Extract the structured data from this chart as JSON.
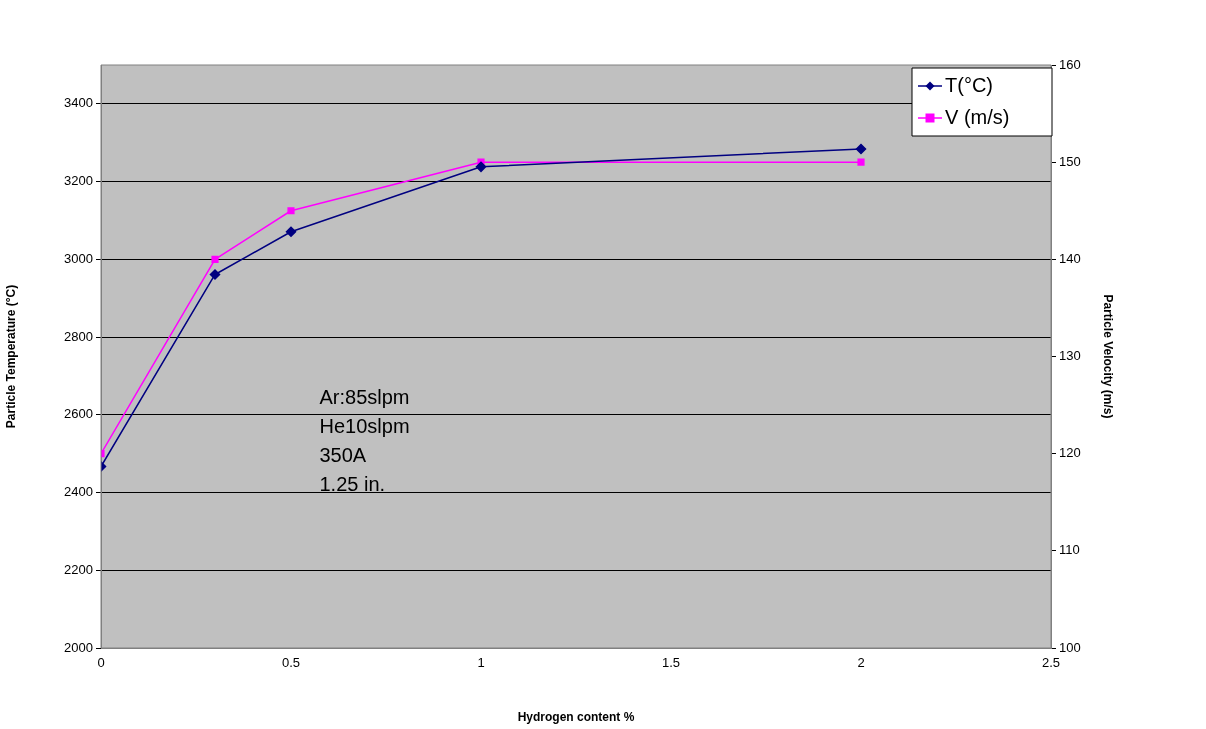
{
  "chart_data": {
    "type": "line",
    "xlabel": "Hydrogen content %",
    "ylabel": "Particle Temperature (°C)",
    "y2label": "Particle Velocity (m/s)",
    "x": [
      0,
      0.3,
      0.5,
      1,
      2
    ],
    "series": [
      {
        "name": "T(°C)",
        "color": "#000080",
        "marker": "diamond",
        "values": [
          2467,
          2961,
          3071,
          3238,
          3284
        ]
      },
      {
        "name": "V (m/s)",
        "color": "#ff00ff",
        "marker": "square",
        "axis": "y2",
        "values": [
          120,
          140,
          145,
          150,
          150
        ]
      }
    ],
    "xlim": [
      0,
      2.5
    ],
    "xticks": [
      0,
      0.5,
      1,
      1.5,
      2,
      2.5
    ],
    "ylim": [
      2000,
      3500
    ],
    "yticks": [
      2000,
      2200,
      2400,
      2600,
      2800,
      3000,
      3200,
      3400
    ],
    "y2lim": [
      100,
      160
    ],
    "y2ticks": [
      100,
      110,
      120,
      130,
      140,
      150,
      160
    ],
    "grid": "y",
    "legend": "top right",
    "line_style": "solid",
    "annotations": [
      "Ar:85slpm",
      "He10slpm",
      "350A",
      "1.25 in."
    ]
  }
}
